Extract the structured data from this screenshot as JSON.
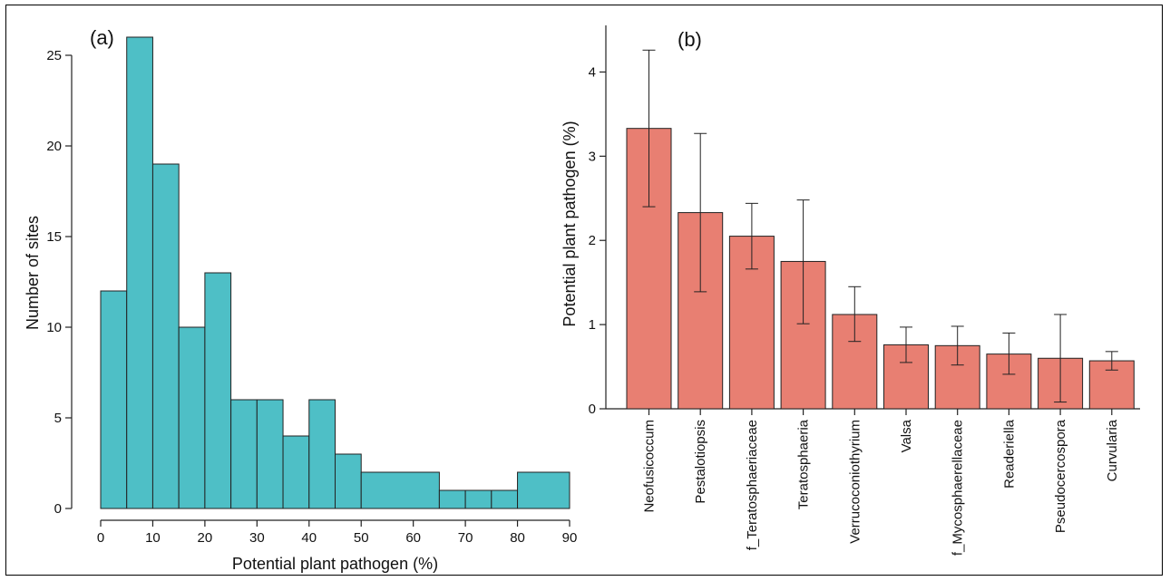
{
  "chart_data": [
    {
      "type": "bar",
      "panel_label": "(a)",
      "xlabel": "Potential plant pathogen (%)",
      "ylabel": "Number of sites",
      "x_ticks": [
        "0",
        "10",
        "20",
        "30",
        "40",
        "50",
        "60",
        "70",
        "80",
        "90"
      ],
      "y_ticks": [
        "0",
        "5",
        "10",
        "15",
        "20",
        "25"
      ],
      "xlim": [
        0,
        90
      ],
      "ylim": [
        0,
        26
      ],
      "bins": [
        {
          "x0": 0,
          "x1": 5,
          "count": 12
        },
        {
          "x0": 5,
          "x1": 10,
          "count": 26
        },
        {
          "x0": 10,
          "x1": 15,
          "count": 19
        },
        {
          "x0": 15,
          "x1": 20,
          "count": 10
        },
        {
          "x0": 20,
          "x1": 25,
          "count": 13
        },
        {
          "x0": 25,
          "x1": 30,
          "count": 6
        },
        {
          "x0": 30,
          "x1": 35,
          "count": 6
        },
        {
          "x0": 35,
          "x1": 40,
          "count": 4
        },
        {
          "x0": 40,
          "x1": 45,
          "count": 6
        },
        {
          "x0": 45,
          "x1": 50,
          "count": 3
        },
        {
          "x0": 50,
          "x1": 65,
          "count": 2
        },
        {
          "x0": 65,
          "x1": 70,
          "count": 1
        },
        {
          "x0": 70,
          "x1": 75,
          "count": 1
        },
        {
          "x0": 75,
          "x1": 80,
          "count": 1
        },
        {
          "x0": 80,
          "x1": 90,
          "count": 2
        }
      ],
      "bar_color": "#4ebfc6"
    },
    {
      "type": "bar",
      "panel_label": "(b)",
      "xlabel": "",
      "ylabel": "Potential plant pathogen (%)",
      "y_ticks": [
        "0",
        "1",
        "2",
        "3",
        "4"
      ],
      "ylim": [
        0,
        4.5
      ],
      "categories": [
        "Neofusicoccum",
        "Pestalotiopsis",
        "f_Teratosphaeriaceae",
        "Teratosphaeria",
        "Verrucoconiothyrium",
        "Valsa",
        "f_Mycosphaerellaceae",
        "Readeriella",
        "Pseudocercospora",
        "Curvularia"
      ],
      "values": [
        3.33,
        2.33,
        2.05,
        1.75,
        1.12,
        0.76,
        0.75,
        0.65,
        0.6,
        0.57
      ],
      "error_low": [
        2.4,
        1.39,
        1.66,
        1.01,
        0.8,
        0.55,
        0.52,
        0.41,
        0.08,
        0.46
      ],
      "error_high": [
        4.26,
        3.27,
        2.44,
        2.48,
        1.45,
        0.97,
        0.98,
        0.9,
        1.12,
        0.68
      ],
      "bar_color": "#e87f72"
    }
  ]
}
